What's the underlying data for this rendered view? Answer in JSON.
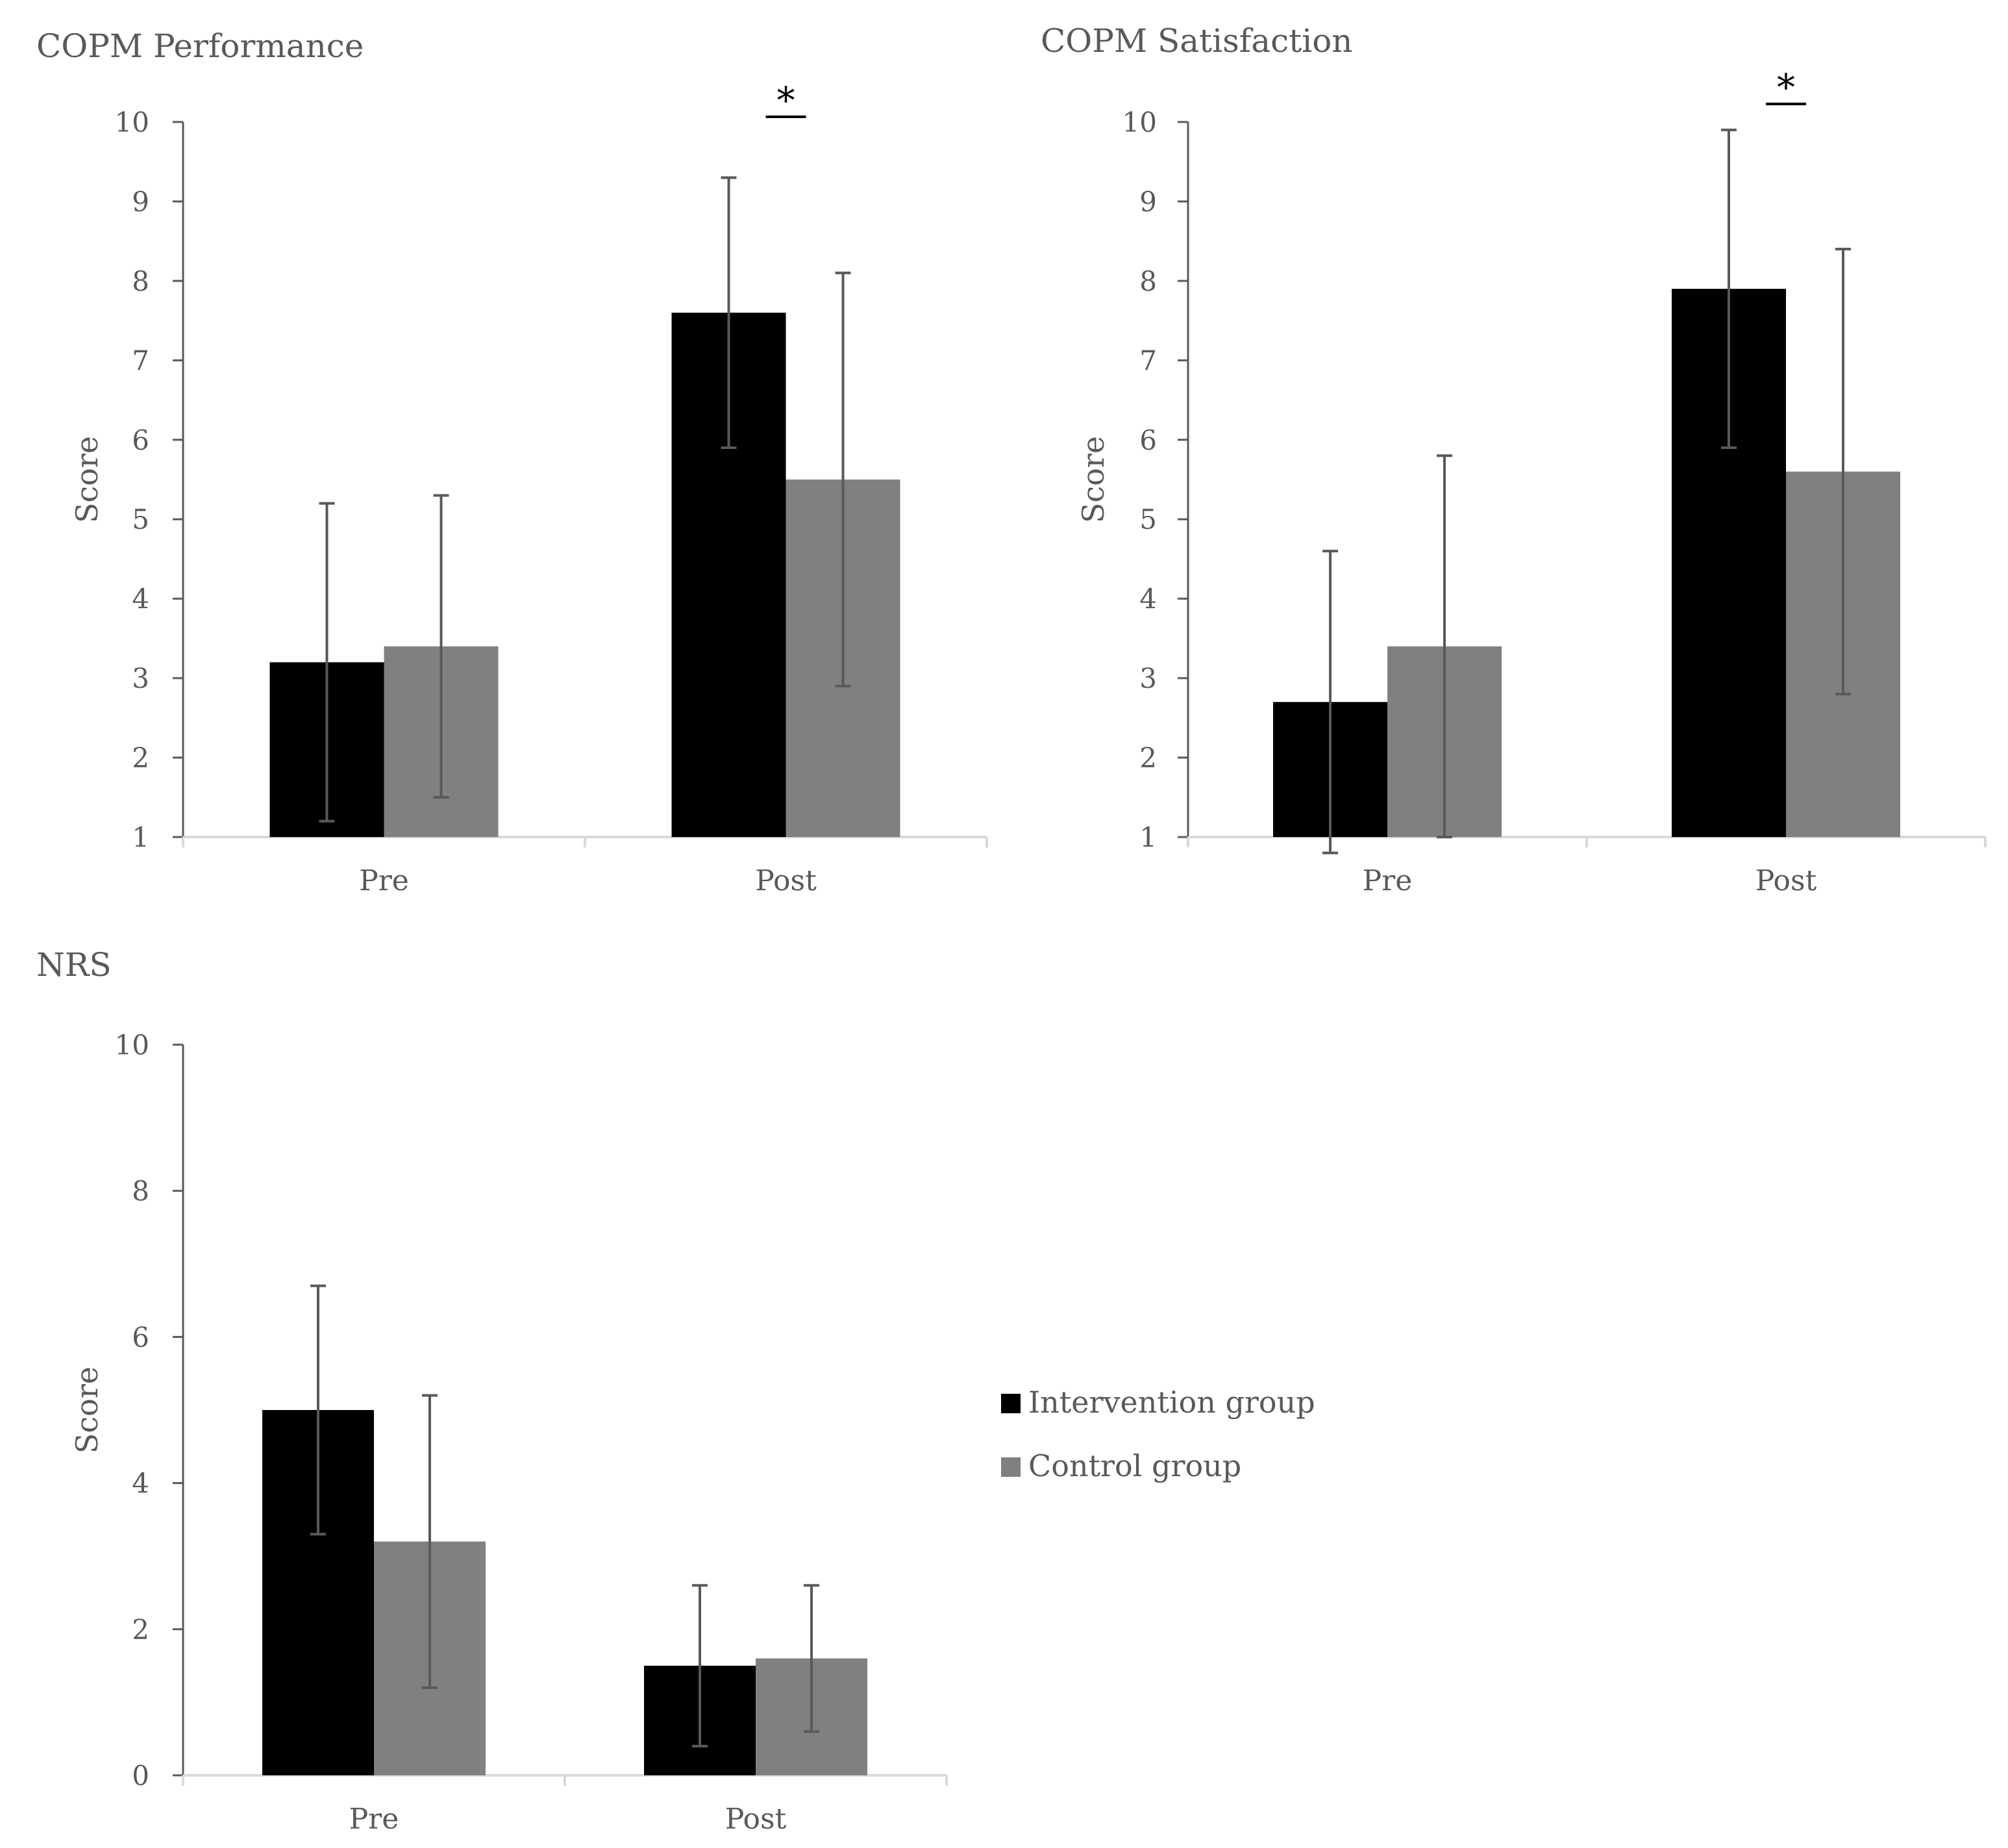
{
  "colors": {
    "intervention": "#000000",
    "control": "#808080",
    "axis": "#d9d9d9",
    "error": "#595959",
    "text": "#595959"
  },
  "legend": {
    "position": "right",
    "items": [
      "Intervention group",
      "Control group"
    ]
  },
  "chart_data": [
    {
      "type": "bar",
      "title": "COPM Performance",
      "ylabel": "Score",
      "xlabel": "",
      "categories": [
        "Pre",
        "Post"
      ],
      "ylim": [
        1,
        10
      ],
      "yticks": [
        1,
        2,
        3,
        4,
        5,
        6,
        7,
        8,
        9,
        10
      ],
      "series": [
        {
          "name": "Intervention group",
          "values": [
            3.2,
            7.6
          ],
          "err_low": [
            1.2,
            5.9
          ],
          "err_high": [
            5.2,
            9.3
          ]
        },
        {
          "name": "Control group",
          "values": [
            3.4,
            5.5
          ],
          "err_low": [
            1.5,
            2.9
          ],
          "err_high": [
            5.3,
            8.1
          ]
        }
      ],
      "annotations": [
        {
          "category": "Post",
          "text": "*"
        }
      ]
    },
    {
      "type": "bar",
      "title": "COPM Satisfaction",
      "ylabel": "Score",
      "xlabel": "",
      "categories": [
        "Pre",
        "Post"
      ],
      "ylim": [
        1,
        10
      ],
      "yticks": [
        1,
        2,
        3,
        4,
        5,
        6,
        7,
        8,
        9,
        10
      ],
      "series": [
        {
          "name": "Intervention group",
          "values": [
            2.7,
            7.9
          ],
          "err_low": [
            0.8,
            5.9
          ],
          "err_high": [
            4.6,
            9.9
          ]
        },
        {
          "name": "Control group",
          "values": [
            3.4,
            5.6
          ],
          "err_low": [
            1.0,
            2.8
          ],
          "err_high": [
            5.8,
            8.4
          ]
        }
      ],
      "annotations": [
        {
          "category": "Post",
          "text": "*"
        }
      ]
    },
    {
      "type": "bar",
      "title": "NRS",
      "ylabel": "Score",
      "xlabel": "",
      "categories": [
        "Pre",
        "Post"
      ],
      "ylim": [
        0,
        10
      ],
      "yticks": [
        0,
        2,
        4,
        6,
        8,
        10
      ],
      "series": [
        {
          "name": "Intervention group",
          "values": [
            5.0,
            1.5
          ],
          "err_low": [
            3.3,
            0.4
          ],
          "err_high": [
            6.7,
            2.6
          ]
        },
        {
          "name": "Control group",
          "values": [
            3.2,
            1.6
          ],
          "err_low": [
            1.2,
            0.6
          ],
          "err_high": [
            5.2,
            2.6
          ]
        }
      ],
      "annotations": []
    }
  ]
}
